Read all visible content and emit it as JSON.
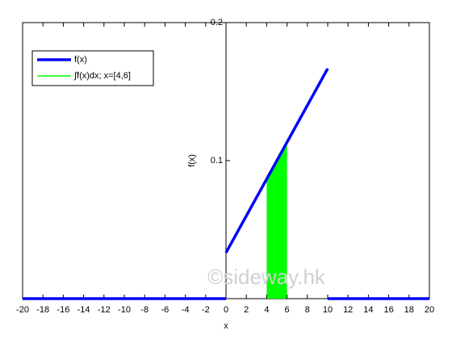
{
  "chart_data": {
    "type": "line",
    "x_label": "x",
    "y_label": "f(x)",
    "series": [
      {
        "name": "f(x)",
        "color": "#0000ff",
        "type": "line",
        "x": [
          -20,
          0,
          null,
          0,
          10,
          null,
          10,
          20
        ],
        "values": [
          0,
          0,
          null,
          0.0333,
          0.1667,
          null,
          0,
          0
        ]
      },
      {
        "name": "∫f(x)dx; x=[4,6]",
        "color": "#00ff00",
        "type": "area",
        "x": [
          4,
          6
        ],
        "values": [
          0.0867,
          0.1133
        ]
      }
    ],
    "xlim": [
      -20,
      20
    ],
    "ylim": [
      0,
      0.2
    ],
    "xticks": [
      -20,
      -18,
      -16,
      -14,
      -12,
      -10,
      -8,
      -6,
      -4,
      -2,
      0,
      2,
      4,
      6,
      8,
      10,
      12,
      14,
      16,
      18,
      20
    ],
    "yticks": [
      0.1,
      0.2
    ],
    "legend": "upper-left",
    "watermark": "©sideway.hk"
  }
}
